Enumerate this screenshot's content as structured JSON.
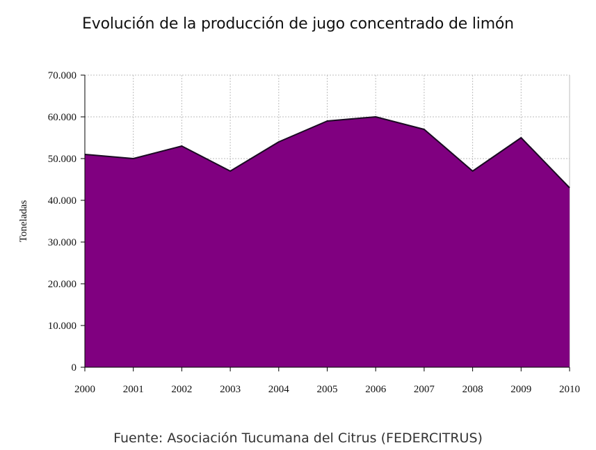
{
  "chart_data": {
    "type": "area",
    "title": "Evolución de la producción de jugo concentrado de limón",
    "xlabel": "",
    "ylabel": "Toneladas",
    "x": [
      "2000",
      "2001",
      "2002",
      "2003",
      "2004",
      "2005",
      "2006",
      "2007",
      "2008",
      "2009",
      "2010"
    ],
    "series": [
      {
        "values": [
          51000,
          50000,
          53000,
          47000,
          54000,
          59000,
          60000,
          57000,
          47000,
          55000,
          43000
        ]
      }
    ],
    "ylim": [
      0,
      70000
    ],
    "ytick_labels": [
      "0",
      "10.000",
      "20.000",
      "30.000",
      "40.000",
      "50.000",
      "60.000",
      "70.000"
    ],
    "grid": true,
    "colors": {
      "fill": "#800080",
      "line": "#1a0a22",
      "grid": "#bdbdbd",
      "axis": "#000000"
    },
    "source": "Fuente: Asociación Tucumana del Citrus (FEDERCITRUS)"
  }
}
